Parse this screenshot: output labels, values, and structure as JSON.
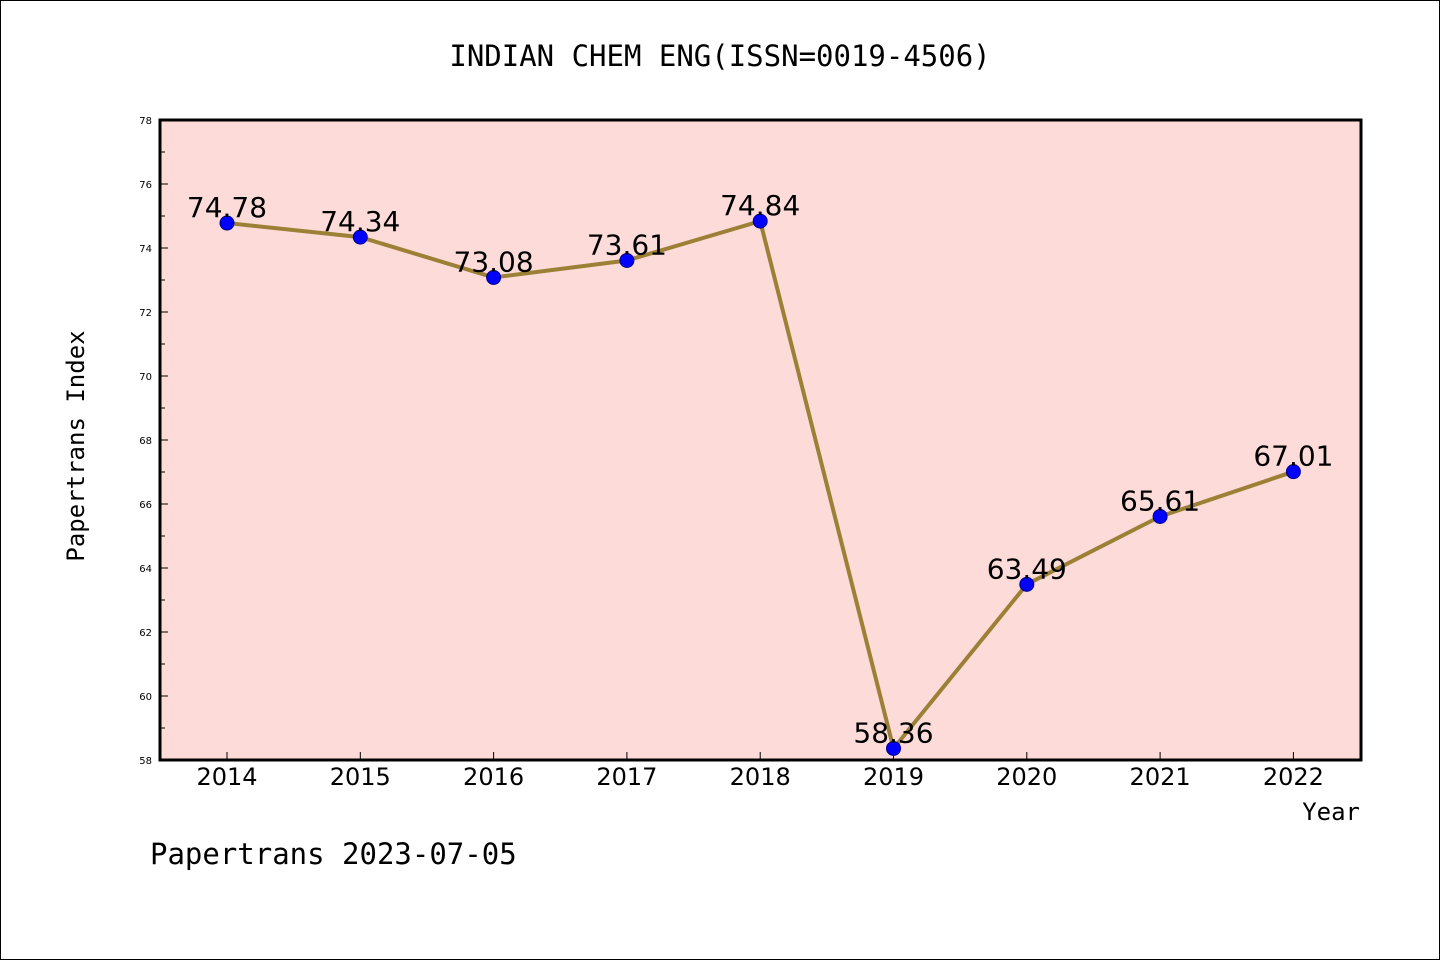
{
  "chart_data": {
    "type": "line",
    "title": "INDIAN CHEM ENG(ISSN=0019-4506)",
    "xlabel": "Year",
    "ylabel": "Papertrans Index",
    "footer": "Papertrans 2023-07-05",
    "categories": [
      "2014",
      "2015",
      "2016",
      "2017",
      "2018",
      "2019",
      "2020",
      "2021",
      "2022"
    ],
    "series": [
      {
        "values": [
          74.78,
          74.34,
          73.08,
          73.61,
          74.84,
          58.36,
          63.49,
          65.61,
          67.01
        ],
        "labels": [
          "74.78",
          "74.34",
          "73.08",
          "73.61",
          "74.84",
          "58.36",
          "63.49",
          "65.61",
          "67.01"
        ]
      }
    ],
    "ylim": [
      58,
      78
    ],
    "yticks": [
      "58",
      "60",
      "62",
      "64",
      "66",
      "68",
      "70",
      "72",
      "74",
      "76",
      "78"
    ],
    "grid": false,
    "colors": {
      "plot_background": "#fddbd9",
      "line": "#9b8035",
      "marker": "#0000ff",
      "marker_edge": "#00008b"
    }
  }
}
